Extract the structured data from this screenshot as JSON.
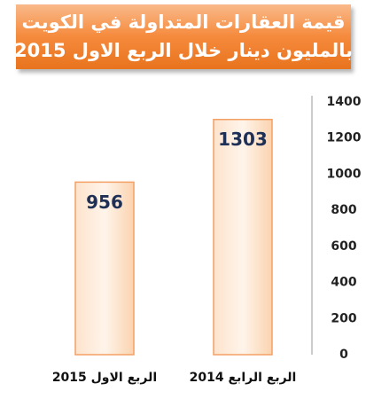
{
  "chart_data": {
    "type": "bar",
    "title": [
      "قيمة العقارات المتداولة في الكويت",
      "بالمليون دينار خلال الربع الاول 2015"
    ],
    "categories": [
      "الربع الاول 2015",
      "الربع الرابع 2014"
    ],
    "values": [
      956,
      1303
    ],
    "color": "#fbd3b0",
    "ylim": [
      0,
      1400
    ],
    "yticks": [
      0,
      200,
      400,
      600,
      800,
      1000,
      1200,
      1400
    ],
    "grid": false
  }
}
